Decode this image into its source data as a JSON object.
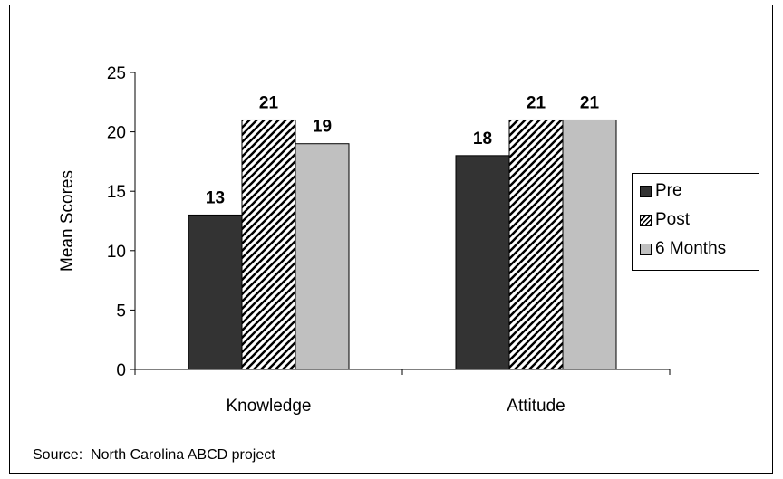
{
  "chart_data": {
    "type": "bar",
    "categories": [
      "Knowledge",
      "Attitude"
    ],
    "series": [
      {
        "name": "Pre",
        "values": [
          13,
          18
        ],
        "fill": "#333333",
        "pattern": "solid"
      },
      {
        "name": "Post",
        "values": [
          21,
          21
        ],
        "fill": "#ffffff",
        "pattern": "diagonal-hatch"
      },
      {
        "name": "6 Months",
        "values": [
          19,
          21
        ],
        "fill": "#c0c0c0",
        "pattern": "solid"
      }
    ],
    "ylabel": "Mean Scores",
    "xlabel": "",
    "ylim": [
      0,
      25
    ],
    "yticks": [
      0,
      5,
      10,
      15,
      20,
      25
    ],
    "grid": false,
    "legend": "right",
    "data_labels": true
  },
  "source": "Source:  North Carolina ABCD project"
}
